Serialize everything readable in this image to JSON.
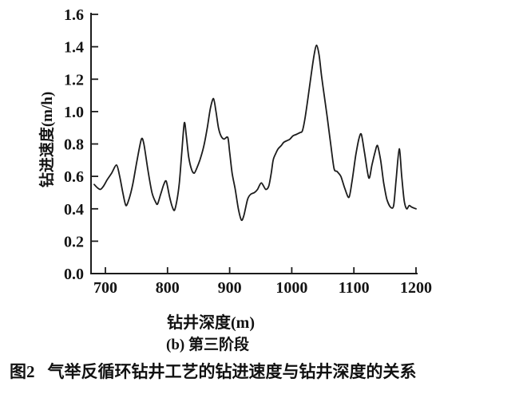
{
  "figure": {
    "caption_prefix": "图2",
    "caption_text": "气举反循环钻井工艺的钻进速度与钻井深度的关系",
    "subtitle": "(b) 第三阶段"
  },
  "chart_data": {
    "type": "line",
    "title": "",
    "xlabel": "钻井深度(m)",
    "ylabel": "钻进速度(m/h)",
    "xlim": [
      677,
      1203
    ],
    "ylim": [
      0.0,
      1.6
    ],
    "x_ticks": [
      700,
      800,
      900,
      1000,
      1100,
      1200
    ],
    "y_ticks": [
      "0.0",
      "0.2",
      "0.4",
      "0.6",
      "0.8",
      "1.0",
      "1.2",
      "1.4",
      "1.6"
    ],
    "grid": false,
    "legend": "none",
    "line_color": "#1c1c1c",
    "axis_color": "#1c1c1c",
    "series": [
      {
        "name": "钻进速度",
        "x": [
          682,
          687,
          692,
          697,
          703,
          710,
          718,
          723,
          728,
          733,
          738,
          744,
          751,
          758,
          762,
          768,
          775,
          781,
          784,
          789,
          794,
          798,
          803,
          807,
          811,
          815,
          819,
          823,
          827,
          830,
          834,
          839,
          843,
          847,
          852,
          858,
          864,
          869,
          874,
          878,
          882,
          886,
          891,
          897,
          900,
          904,
          909,
          914,
          919,
          923,
          929,
          934,
          940,
          945,
          951,
          958,
          963,
          967,
          970,
          974,
          978,
          983,
          987,
          992,
          997,
          1002,
          1008,
          1013,
          1017,
          1021,
          1026,
          1031,
          1036,
          1040,
          1044,
          1048,
          1053,
          1057,
          1062,
          1068,
          1073,
          1079,
          1085,
          1092,
          1097,
          1103,
          1108,
          1112,
          1117,
          1124,
          1129,
          1134,
          1138,
          1143,
          1148,
          1153,
          1159,
          1164,
          1168,
          1173,
          1177,
          1181,
          1185,
          1189,
          1193,
          1200
        ],
        "y": [
          0.55,
          0.53,
          0.52,
          0.54,
          0.58,
          0.62,
          0.67,
          0.6,
          0.5,
          0.42,
          0.46,
          0.55,
          0.7,
          0.83,
          0.8,
          0.65,
          0.5,
          0.44,
          0.43,
          0.49,
          0.55,
          0.57,
          0.48,
          0.42,
          0.39,
          0.45,
          0.56,
          0.75,
          0.93,
          0.86,
          0.72,
          0.64,
          0.62,
          0.65,
          0.7,
          0.78,
          0.9,
          1.02,
          1.08,
          1.0,
          0.9,
          0.85,
          0.83,
          0.84,
          0.75,
          0.62,
          0.52,
          0.4,
          0.33,
          0.36,
          0.46,
          0.49,
          0.5,
          0.52,
          0.56,
          0.52,
          0.54,
          0.62,
          0.7,
          0.74,
          0.77,
          0.79,
          0.81,
          0.82,
          0.83,
          0.85,
          0.86,
          0.87,
          0.88,
          0.95,
          1.08,
          1.22,
          1.35,
          1.41,
          1.35,
          1.22,
          1.08,
          0.97,
          0.82,
          0.65,
          0.63,
          0.6,
          0.53,
          0.47,
          0.57,
          0.73,
          0.83,
          0.86,
          0.75,
          0.59,
          0.67,
          0.75,
          0.79,
          0.7,
          0.56,
          0.46,
          0.41,
          0.42,
          0.58,
          0.77,
          0.6,
          0.45,
          0.4,
          0.42,
          0.41,
          0.4
        ]
      }
    ]
  }
}
